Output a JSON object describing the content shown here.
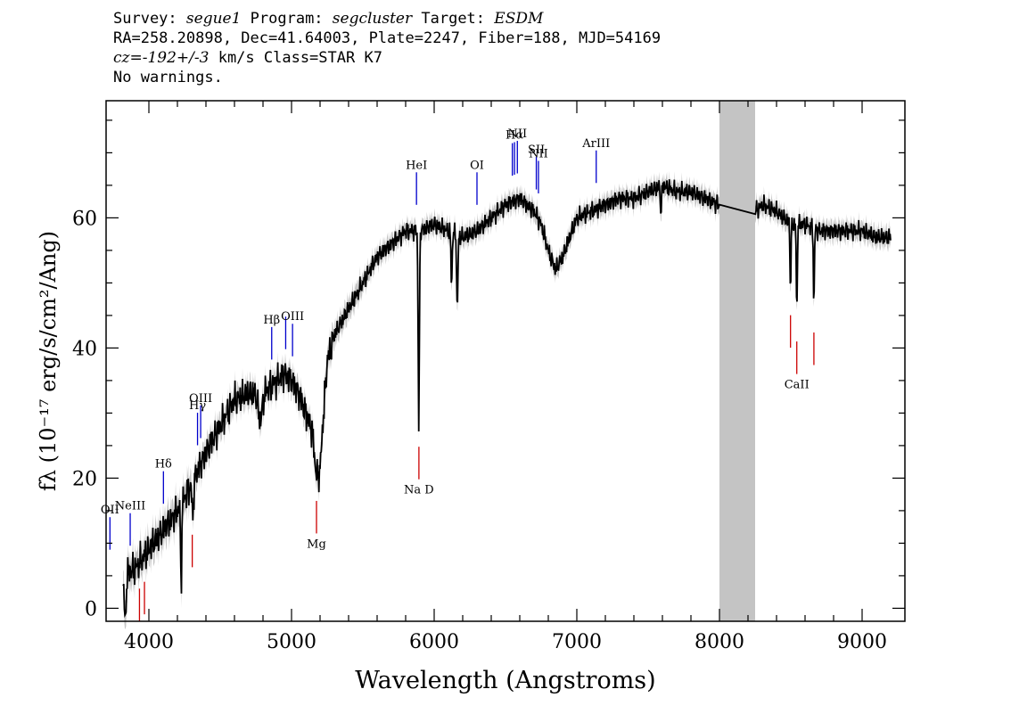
{
  "header": {
    "line1": {
      "survey_label": "Survey:",
      "survey": "segue1",
      "program_label": "Program:",
      "program": "segcluster",
      "target_label": "Target:",
      "target": "ESDM"
    },
    "line2": "RA=258.20898, Dec=41.64003, Plate=2247, Fiber=188, MJD=54169",
    "line3": {
      "cz": "cz=-192+/-3",
      "rest": "km/s Class=STAR K7"
    },
    "line4": "No warnings."
  },
  "colors": {
    "flux": "#000000",
    "error_band": "#c4c4c4",
    "masked_band": "#c4c4c4",
    "emission": "#0000cc",
    "absorption": "#cc0000"
  },
  "chart_data": {
    "type": "line",
    "xlabel": "Wavelength (Angstroms)",
    "ylabel": "fλ (10⁻¹⁷ erg/s/cm²/Ang)",
    "xlim": [
      3700,
      9300
    ],
    "ylim": [
      -2,
      78
    ],
    "xticks": [
      4000,
      5000,
      6000,
      7000,
      8000,
      9000
    ],
    "yticks": [
      0,
      20,
      40,
      60
    ],
    "grid": false,
    "masked_region": [
      8000,
      8250
    ],
    "continuum": {
      "x": [
        3820,
        3900,
        4000,
        4100,
        4200,
        4300,
        4400,
        4500,
        4600,
        4700,
        4800,
        4900,
        4950,
        5000,
        5050,
        5100,
        5150,
        5200,
        5250,
        5300,
        5400,
        5500,
        5600,
        5700,
        5800,
        5900,
        6000,
        6100,
        6200,
        6300,
        6400,
        6500,
        6600,
        6700,
        6750,
        6800,
        6850,
        6900,
        7000,
        7100,
        7200,
        7300,
        7400,
        7500,
        7600,
        7700,
        7800,
        7900,
        8000,
        8250,
        8300,
        8400,
        8500,
        8600,
        8700,
        8800,
        8900,
        9000,
        9100,
        9200
      ],
      "y": [
        5,
        6,
        9,
        12,
        15,
        19,
        24,
        28,
        32,
        33,
        33,
        35,
        36,
        35,
        33,
        30,
        27,
        22,
        38,
        42,
        46,
        50,
        54,
        56,
        58,
        58,
        59,
        58,
        57,
        58,
        60,
        62,
        63,
        61,
        59,
        55,
        52,
        54,
        60,
        61,
        62,
        63,
        63,
        64,
        65,
        64,
        64,
        63,
        62,
        61,
        62,
        61,
        59,
        59,
        58,
        58,
        58,
        58,
        57,
        57
      ]
    },
    "absorption_dips": [
      {
        "x": 3834,
        "depth": 8,
        "width": 8
      },
      {
        "x": 4226,
        "depth": 12,
        "width": 6
      },
      {
        "x": 4308,
        "depth": 5,
        "width": 8
      },
      {
        "x": 4780,
        "depth": 4,
        "width": 20
      },
      {
        "x": 5175,
        "depth": 4,
        "width": 20
      },
      {
        "x": 5892,
        "depth": 30,
        "width": 6
      },
      {
        "x": 6122,
        "depth": 8,
        "width": 6
      },
      {
        "x": 6162,
        "depth": 12,
        "width": 6
      },
      {
        "x": 7590,
        "depth": 4,
        "width": 6
      },
      {
        "x": 8498,
        "depth": 10,
        "width": 5
      },
      {
        "x": 8542,
        "depth": 14,
        "width": 5
      },
      {
        "x": 8662,
        "depth": 12,
        "width": 5
      }
    ],
    "emission_lines": [
      {
        "x": 3727,
        "label": "OII"
      },
      {
        "x": 3869,
        "label": "NeIII"
      },
      {
        "x": 4102,
        "label": "Hδ"
      },
      {
        "x": 4341,
        "label": "Hγ"
      },
      {
        "x": 4363,
        "label": "OIII"
      },
      {
        "x": 4861,
        "label": "Hβ"
      },
      {
        "x": 4959,
        "label": ""
      },
      {
        "x": 5007,
        "label": "OIII"
      },
      {
        "x": 5876,
        "label": "HeI"
      },
      {
        "x": 6300,
        "label": "OI"
      },
      {
        "x": 6548,
        "label": ""
      },
      {
        "x": 6563,
        "label": "Hα"
      },
      {
        "x": 6583,
        "label": "NII"
      },
      {
        "x": 6716,
        "label": "SII"
      },
      {
        "x": 6731,
        "label": "NII"
      },
      {
        "x": 7136,
        "label": "ArIII"
      }
    ],
    "absorption_lines": [
      {
        "x": 3934,
        "label": ""
      },
      {
        "x": 3969,
        "label": ""
      },
      {
        "x": 4304,
        "label": ""
      },
      {
        "x": 5175,
        "label": "Mg"
      },
      {
        "x": 5893,
        "label": "Na  D"
      },
      {
        "x": 8498,
        "label": ""
      },
      {
        "x": 8542,
        "label": "CaII"
      },
      {
        "x": 8662,
        "label": ""
      }
    ]
  }
}
